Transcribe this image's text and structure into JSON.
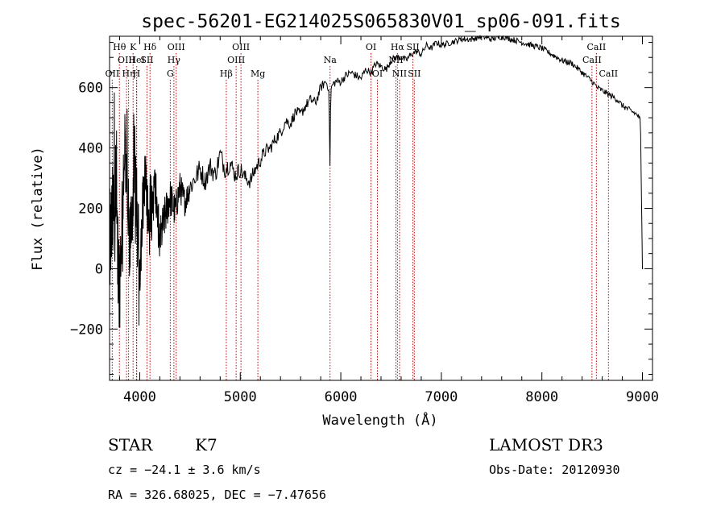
{
  "chart_data": {
    "type": "line",
    "title": "spec-56201-EG214025S065830V01_sp06-091.fits",
    "xlabel": "Wavelength (Å)",
    "ylabel": "Flux (relative)",
    "xlim": [
      3700,
      9100
    ],
    "ylim": [
      -370,
      770
    ],
    "x_ticks": [
      4000,
      5000,
      6000,
      7000,
      8000,
      9000
    ],
    "x_tick_labels": [
      "4000",
      "5000",
      "6000",
      "7000",
      "8000",
      "9000"
    ],
    "y_ticks": [
      -200,
      0,
      200,
      400,
      600
    ],
    "y_tick_labels": [
      "−200",
      "0",
      "200",
      "400",
      "600"
    ],
    "spectrum": {
      "name": "flux",
      "x": [
        3700,
        3750,
        3800,
        3850,
        3900,
        3950,
        4000,
        4050,
        4100,
        4150,
        4200,
        4250,
        4300,
        4350,
        4400,
        4450,
        4500,
        4550,
        4600,
        4650,
        4700,
        4750,
        4800,
        4850,
        4900,
        4950,
        5000,
        5050,
        5100,
        5150,
        5200,
        5250,
        5300,
        5350,
        5400,
        5450,
        5500,
        5550,
        5600,
        5650,
        5700,
        5750,
        5800,
        5850,
        5880,
        5893,
        5900,
        5920,
        5950,
        6000,
        6050,
        6100,
        6150,
        6200,
        6250,
        6300,
        6350,
        6400,
        6450,
        6500,
        6550,
        6600,
        6650,
        6700,
        6750,
        6800,
        6850,
        6900,
        6950,
        7000,
        7100,
        7200,
        7300,
        7400,
        7500,
        7600,
        7700,
        7800,
        7900,
        8000,
        8100,
        8200,
        8300,
        8400,
        8500,
        8550,
        8600,
        8650,
        8700,
        8750,
        8800,
        8850,
        8900,
        8950,
        8980,
        8990,
        9000,
        9010
      ],
      "y": [
        60,
        220,
        -50,
        430,
        60,
        350,
        10,
        320,
        120,
        280,
        90,
        170,
        240,
        190,
        270,
        220,
        270,
        300,
        330,
        290,
        340,
        310,
        380,
        330,
        350,
        310,
        330,
        300,
        290,
        330,
        360,
        390,
        400,
        430,
        450,
        490,
        480,
        520,
        510,
        540,
        560,
        550,
        600,
        620,
        600,
        330,
        590,
        610,
        620,
        620,
        640,
        650,
        640,
        630,
        660,
        650,
        680,
        670,
        660,
        690,
        700,
        700,
        690,
        710,
        720,
        710,
        740,
        730,
        750,
        740,
        750,
        760,
        760,
        770,
        760,
        770,
        760,
        750,
        740,
        730,
        710,
        690,
        680,
        650,
        620,
        600,
        590,
        580,
        570,
        560,
        540,
        530,
        520,
        510,
        490,
        240,
        10,
        10
      ]
    },
    "noise_amplitude": [
      [
        3700,
        200
      ],
      [
        4100,
        90
      ],
      [
        4500,
        40
      ],
      [
        5300,
        22
      ],
      [
        6000,
        14
      ],
      [
        7000,
        10
      ],
      [
        9000,
        10
      ]
    ],
    "spectral_lines": [
      {
        "name": "OII",
        "wavelength": 3727,
        "row": 3
      },
      {
        "name": "Hθ",
        "wavelength": 3798,
        "row": 1
      },
      {
        "name": "OIII",
        "wavelength": 3869,
        "row": 2
      },
      {
        "name": "Hη",
        "wavelength": 3889,
        "row": 3
      },
      {
        "name": "K",
        "wavelength": 3934,
        "row": 1
      },
      {
        "name": "HeI",
        "wavelength": 3970,
        "row": 2
      },
      {
        "name": "H",
        "wavelength": 3968,
        "row": 3
      },
      {
        "name": "SII",
        "wavelength": 4072,
        "row": 2
      },
      {
        "name": "Hδ",
        "wavelength": 4102,
        "row": 1
      },
      {
        "name": "G",
        "wavelength": 4304,
        "row": 3
      },
      {
        "name": "Hγ",
        "wavelength": 4340,
        "row": 2
      },
      {
        "name": "OIII",
        "wavelength": 4363,
        "row": 1
      },
      {
        "name": "Hβ",
        "wavelength": 4861,
        "row": 3
      },
      {
        "name": "OIII",
        "wavelength": 4959,
        "row": 2
      },
      {
        "name": "OIII",
        "wavelength": 5007,
        "row": 1
      },
      {
        "name": "Mg",
        "wavelength": 5175,
        "row": 3
      },
      {
        "name": "Na",
        "wavelength": 5893,
        "row": 2
      },
      {
        "name": "OI",
        "wavelength": 6300,
        "row": 1
      },
      {
        "name": "OI",
        "wavelength": 6364,
        "row": 3
      },
      {
        "name": "NII",
        "wavelength": 6548,
        "row": 2
      },
      {
        "name": "Hα",
        "wavelength": 6563,
        "row": 1
      },
      {
        "name": "NII",
        "wavelength": 6584,
        "row": 3
      },
      {
        "name": "SII",
        "wavelength": 6717,
        "row": 1
      },
      {
        "name": "SII",
        "wavelength": 6731,
        "row": 3
      },
      {
        "name": "CaII",
        "wavelength": 8498,
        "row": 2
      },
      {
        "name": "CaII",
        "wavelength": 8542,
        "row": 1
      },
      {
        "name": "CaII",
        "wavelength": 8662,
        "row": 3
      }
    ],
    "colors": {
      "spectrum": "#000000",
      "line_markers": "#cc0000",
      "axes": "#000000"
    }
  },
  "info": {
    "object_class": "STAR",
    "subclass": "K7",
    "survey": "LAMOST DR3",
    "cz": "cz = −24.1 ± 3.6 km/s",
    "obs_date": "Obs-Date: 20120930",
    "coords": "RA = 326.68025, DEC =  −7.47656"
  }
}
